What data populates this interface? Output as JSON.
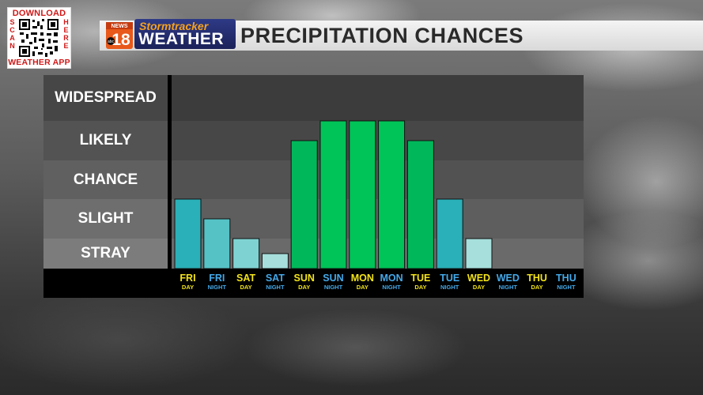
{
  "qr_badge": {
    "top": "DOWNLOAD",
    "left": "SCAN",
    "right": "HERE",
    "bottom": "WEATHER APP"
  },
  "brand": {
    "news": "NEWS",
    "number": "18",
    "network": "abc",
    "stormtracker": "Stormtracker",
    "weather": "WEATHER"
  },
  "title": "PRECIPITATION CHANCES",
  "colors": {
    "day_label": "#f2e31a",
    "night_label": "#44a8e8",
    "teal": "#2ab0b8",
    "green": "#00c458"
  },
  "chart_data": {
    "type": "bar",
    "levels": [
      "STRAY",
      "SLIGHT",
      "CHANCE",
      "LIKELY",
      "WIDESPREAD"
    ],
    "categories": [
      {
        "day": "FRI",
        "period": "DAY"
      },
      {
        "day": "FRI",
        "period": "NIGHT"
      },
      {
        "day": "SAT",
        "period": "DAY"
      },
      {
        "day": "SAT",
        "period": "NIGHT"
      },
      {
        "day": "SUN",
        "period": "DAY"
      },
      {
        "day": "SUN",
        "period": "NIGHT"
      },
      {
        "day": "MON",
        "period": "DAY"
      },
      {
        "day": "MON",
        "period": "NIGHT"
      },
      {
        "day": "TUE",
        "period": "DAY"
      },
      {
        "day": "TUE",
        "period": "NIGHT"
      },
      {
        "day": "WED",
        "period": "DAY"
      },
      {
        "day": "WED",
        "period": "NIGHT"
      },
      {
        "day": "THU",
        "period": "DAY"
      },
      {
        "day": "THU",
        "period": "NIGHT"
      }
    ],
    "values": [
      2.0,
      1.5,
      1.0,
      0.5,
      3.5,
      4.0,
      4.0,
      4.0,
      3.5,
      2.0,
      1.0,
      0,
      0,
      0
    ],
    "bar_colors": [
      "#2ab0b8",
      "#55c2c6",
      "#7fd2d2",
      "#a6dfdc",
      "#00b85a",
      "#00c458",
      "#00c458",
      "#00c458",
      "#00b85a",
      "#2ab0b8",
      "#a6dfdc",
      "",
      "",
      ""
    ],
    "ylim": [
      0,
      5
    ]
  }
}
